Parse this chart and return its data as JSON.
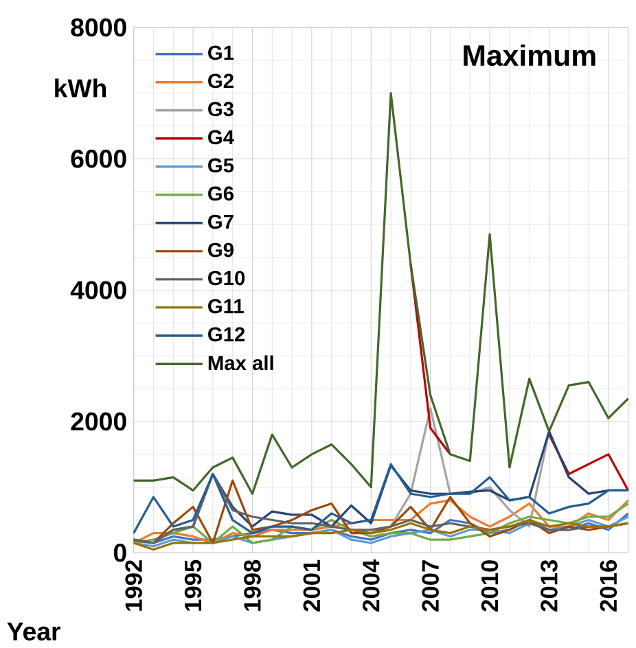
{
  "chart_data": {
    "type": "line",
    "title": "Maximum",
    "xlabel": "Year",
    "ylabel": "kWh",
    "x": [
      1992,
      1993,
      1994,
      1995,
      1996,
      1997,
      1998,
      1999,
      2000,
      2001,
      2002,
      2003,
      2004,
      2005,
      2006,
      2007,
      2008,
      2009,
      2010,
      2011,
      2012,
      2013,
      2014,
      2015,
      2016,
      2017
    ],
    "xlim": [
      1992,
      2017
    ],
    "xticks": [
      1992,
      1995,
      1998,
      2001,
      2004,
      2007,
      2010,
      2013,
      2016
    ],
    "ylim": [
      0,
      8000
    ],
    "yticks": [
      0,
      2000,
      4000,
      6000,
      8000
    ],
    "grid": true,
    "legend": "top left",
    "marker": "none",
    "line_style": "solid",
    "series": [
      {
        "name": "G1",
        "color": "#4472c4",
        "values": [
          180,
          150,
          250,
          200,
          200,
          250,
          300,
          350,
          300,
          300,
          350,
          250,
          200,
          300,
          350,
          300,
          500,
          450,
          300,
          350,
          500,
          350,
          350,
          450,
          350,
          600
        ]
      },
      {
        "name": "G2",
        "color": "#ed7d31",
        "values": [
          150,
          300,
          300,
          250,
          150,
          300,
          250,
          350,
          350,
          350,
          400,
          450,
          500,
          500,
          500,
          750,
          800,
          550,
          400,
          550,
          750,
          400,
          400,
          600,
          500,
          800
        ]
      },
      {
        "name": "G3",
        "color": "#a5a5a5",
        "values": [
          null,
          null,
          null,
          null,
          null,
          null,
          null,
          null,
          null,
          null,
          null,
          null,
          null,
          400,
          900,
          2200,
          900,
          900,
          1000,
          650,
          400,
          1850,
          1150,
          900,
          950,
          950
        ]
      },
      {
        "name": "G4",
        "color": "#c00000",
        "values": [
          null,
          null,
          null,
          null,
          null,
          null,
          null,
          null,
          null,
          null,
          null,
          null,
          null,
          null,
          4400,
          1900,
          1500,
          null,
          null,
          null,
          null,
          1800,
          1200,
          1350,
          1500,
          950
        ]
      },
      {
        "name": "G5",
        "color": "#5b9bd5",
        "values": [
          150,
          100,
          200,
          150,
          150,
          250,
          150,
          200,
          250,
          300,
          350,
          200,
          150,
          250,
          300,
          350,
          250,
          350,
          350,
          300,
          450,
          350,
          400,
          500,
          400,
          550
        ]
      },
      {
        "name": "G6",
        "color": "#70ad47",
        "values": [
          150,
          200,
          300,
          400,
          150,
          400,
          150,
          200,
          400,
          350,
          500,
          350,
          250,
          300,
          300,
          200,
          200,
          250,
          300,
          450,
          550,
          500,
          450,
          550,
          550,
          750
        ]
      },
      {
        "name": "G7",
        "color": "#264478",
        "values": [
          200,
          150,
          350,
          400,
          1200,
          700,
          400,
          630,
          580,
          580,
          400,
          720,
          450,
          1330,
          950,
          900,
          900,
          930,
          950,
          800,
          850,
          1850,
          1150,
          900,
          950,
          950
        ]
      },
      {
        "name": "G9",
        "color": "#9e480e",
        "values": [
          200,
          150,
          450,
          700,
          150,
          1100,
          350,
          400,
          500,
          650,
          750,
          300,
          300,
          400,
          700,
          350,
          850,
          450,
          250,
          350,
          500,
          300,
          400,
          350,
          400,
          450
        ]
      },
      {
        "name": "G10",
        "color": "#636363",
        "values": [
          200,
          150,
          350,
          400,
          1200,
          650,
          550,
          500,
          450,
          450,
          400,
          350,
          350,
          400,
          500,
          400,
          450,
          400,
          350,
          400,
          450,
          350,
          350,
          400,
          400,
          450
        ]
      },
      {
        "name": "G11",
        "color": "#997300",
        "values": [
          150,
          50,
          150,
          150,
          150,
          200,
          250,
          250,
          250,
          300,
          300,
          350,
          300,
          350,
          450,
          350,
          300,
          400,
          350,
          400,
          500,
          400,
          450,
          400,
          400,
          450
        ]
      },
      {
        "name": "G12",
        "color": "#255e91",
        "values": [
          300,
          850,
          400,
          500,
          1200,
          500,
          300,
          400,
          400,
          350,
          600,
          450,
          500,
          1350,
          900,
          850,
          900,
          900,
          1150,
          800,
          850,
          600,
          700,
          750,
          950,
          950
        ]
      },
      {
        "name": "Max all",
        "color": "#43682b",
        "values": [
          1100,
          1100,
          1150,
          950,
          1300,
          1450,
          900,
          1800,
          1300,
          1500,
          1650,
          1350,
          1000,
          7000,
          4400,
          2400,
          1500,
          1400,
          4850,
          1300,
          2650,
          1850,
          2550,
          2600,
          2050,
          2350
        ]
      }
    ]
  }
}
